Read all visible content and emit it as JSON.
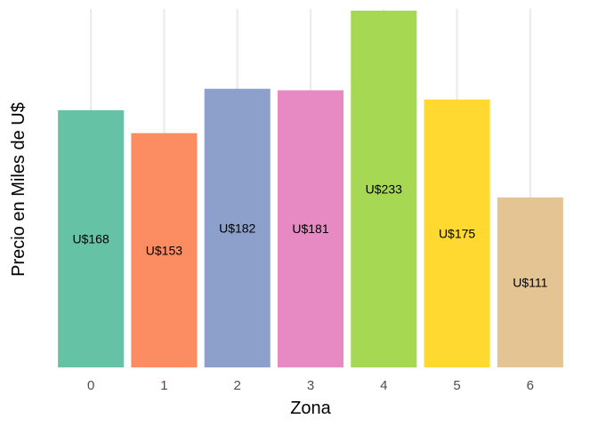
{
  "chart_data": {
    "type": "bar",
    "title": "",
    "xlabel": "Zona",
    "ylabel": "Precio en Miles de U$",
    "categories": [
      "0",
      "1",
      "2",
      "3",
      "4",
      "5",
      "6"
    ],
    "values": [
      168,
      153,
      182,
      181,
      233,
      175,
      111
    ],
    "data_labels": [
      "U$168",
      "U$153",
      "U$182",
      "U$181",
      "U$233",
      "U$175",
      "U$111"
    ],
    "colors": [
      "#66C2A5",
      "#FC8D62",
      "#8DA0CB",
      "#E78AC3",
      "#A6D854",
      "#FFD92F",
      "#E5C494"
    ],
    "ylim": [
      0,
      233
    ],
    "y_ticks_shown": false,
    "grid": "vertical major",
    "legend": "none"
  }
}
